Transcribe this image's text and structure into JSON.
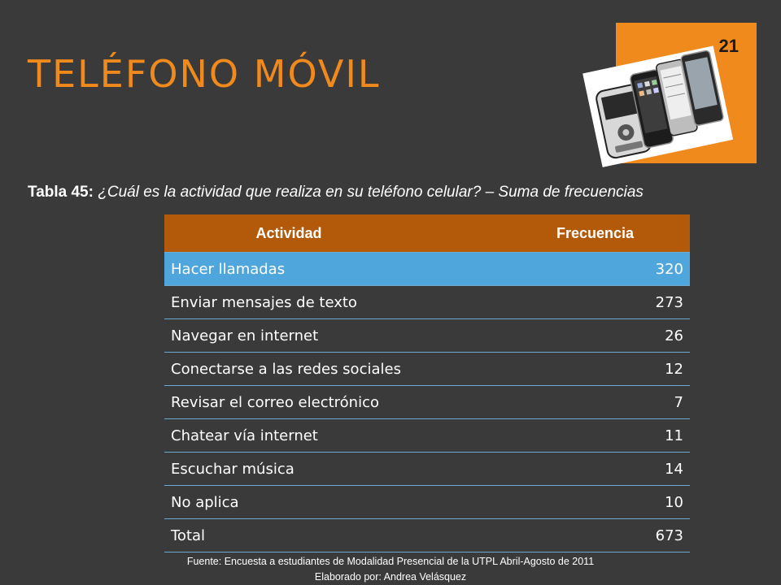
{
  "slide": {
    "title": "TELÉFONO MÓVIL",
    "number": "21",
    "accent_color": "#f08a1c",
    "background_color": "#3a3a3a"
  },
  "caption": {
    "label": "Tabla 45:",
    "question": "¿Cuál es la actividad que realiza en su teléfono celular? – Suma de frecuencias"
  },
  "table": {
    "headers": [
      "Actividad",
      "Frecuencia"
    ],
    "header_color": "#b35a0a",
    "highlight_color": "#4ea6dc",
    "rows": [
      {
        "activity": "Hacer llamadas",
        "frequency": "320"
      },
      {
        "activity": "Enviar mensajes de texto",
        "frequency": "273"
      },
      {
        "activity": "Navegar en internet",
        "frequency": "26"
      },
      {
        "activity": "Conectarse a las redes sociales",
        "frequency": "12"
      },
      {
        "activity": "Revisar el correo electrónico",
        "frequency": "7"
      },
      {
        "activity": "Chatear vía internet",
        "frequency": "11"
      },
      {
        "activity": "Escuchar música",
        "frequency": "14"
      },
      {
        "activity": "No aplica",
        "frequency": "10"
      },
      {
        "activity": "Total",
        "frequency": "673"
      }
    ]
  },
  "footer": {
    "source": "Fuente: Encuesta a estudiantes de Modalidad Presencial de la UTPL Abril-Agosto de 2011",
    "author": "Elaborado por: Andrea  Velásquez"
  },
  "image": {
    "icon": "mobile-phones-image"
  }
}
